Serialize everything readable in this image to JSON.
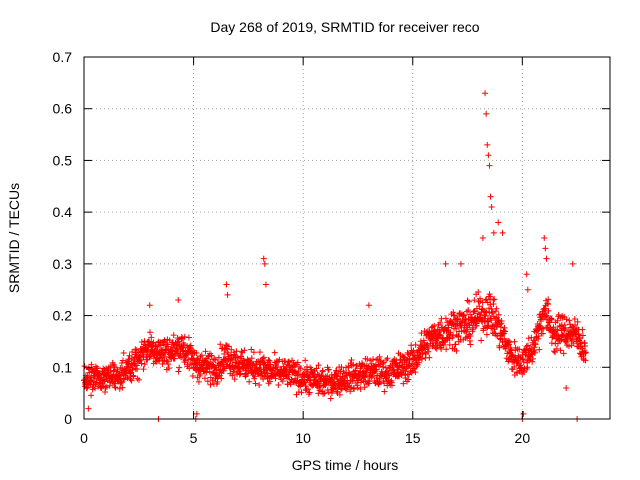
{
  "chart_data": {
    "type": "scatter",
    "title": "Day 268 of 2019, SRMTID for receiver reco",
    "xlabel": "GPS time / hours",
    "ylabel": "SRMTID / TECUs",
    "xlim": [
      0,
      24
    ],
    "ylim": [
      0,
      0.7
    ],
    "xticks": [
      0,
      5,
      10,
      15,
      20
    ],
    "yticks": [
      0,
      0.1,
      0.2,
      0.3,
      0.4,
      0.5,
      0.6,
      0.7
    ],
    "ytick_labels": [
      "0",
      "0.1",
      "0.2",
      "0.3",
      "0.4",
      "0.5",
      "0.6",
      "0.7"
    ],
    "grid": true,
    "marker": "+",
    "color": "#ff0000",
    "trend": [
      [
        0.0,
        0.07
      ],
      [
        0.5,
        0.08
      ],
      [
        1.0,
        0.085
      ],
      [
        1.5,
        0.08
      ],
      [
        2.0,
        0.09
      ],
      [
        2.5,
        0.12
      ],
      [
        3.0,
        0.14
      ],
      [
        3.5,
        0.13
      ],
      [
        4.0,
        0.13
      ],
      [
        4.5,
        0.14
      ],
      [
        5.0,
        0.11
      ],
      [
        5.5,
        0.1
      ],
      [
        6.0,
        0.1
      ],
      [
        6.5,
        0.12
      ],
      [
        7.0,
        0.11
      ],
      [
        7.5,
        0.1
      ],
      [
        8.0,
        0.1
      ],
      [
        8.5,
        0.09
      ],
      [
        9.0,
        0.09
      ],
      [
        9.5,
        0.085
      ],
      [
        10.0,
        0.08
      ],
      [
        10.5,
        0.075
      ],
      [
        11.0,
        0.07
      ],
      [
        11.5,
        0.075
      ],
      [
        12.0,
        0.08
      ],
      [
        12.5,
        0.085
      ],
      [
        13.0,
        0.09
      ],
      [
        13.5,
        0.09
      ],
      [
        14.0,
        0.09
      ],
      [
        14.5,
        0.1
      ],
      [
        15.0,
        0.11
      ],
      [
        15.5,
        0.14
      ],
      [
        16.0,
        0.16
      ],
      [
        16.5,
        0.17
      ],
      [
        17.0,
        0.18
      ],
      [
        17.5,
        0.18
      ],
      [
        18.0,
        0.2
      ],
      [
        18.5,
        0.21
      ],
      [
        19.0,
        0.17
      ],
      [
        19.5,
        0.12
      ],
      [
        20.0,
        0.11
      ],
      [
        20.5,
        0.14
      ],
      [
        21.0,
        0.21
      ],
      [
        21.5,
        0.16
      ],
      [
        22.0,
        0.17
      ],
      [
        22.5,
        0.16
      ],
      [
        22.9,
        0.13
      ]
    ],
    "outliers": [
      [
        0.2,
        0.02
      ],
      [
        3.4,
        0.0
      ],
      [
        5.1,
        0.0
      ],
      [
        5.15,
        0.01
      ],
      [
        6.5,
        0.26
      ],
      [
        6.55,
        0.24
      ],
      [
        8.2,
        0.31
      ],
      [
        8.25,
        0.3
      ],
      [
        8.3,
        0.26
      ],
      [
        13.0,
        0.22
      ],
      [
        18.3,
        0.63
      ],
      [
        18.35,
        0.59
      ],
      [
        18.4,
        0.53
      ],
      [
        18.45,
        0.51
      ],
      [
        18.5,
        0.49
      ],
      [
        18.55,
        0.43
      ],
      [
        18.6,
        0.41
      ],
      [
        18.9,
        0.38
      ],
      [
        18.2,
        0.35
      ],
      [
        18.7,
        0.36
      ],
      [
        19.1,
        0.36
      ],
      [
        20.0,
        0.0
      ],
      [
        20.05,
        0.01
      ],
      [
        20.2,
        0.28
      ],
      [
        20.25,
        0.25
      ],
      [
        21.0,
        0.35
      ],
      [
        21.05,
        0.33
      ],
      [
        21.1,
        0.31
      ],
      [
        22.3,
        0.3
      ],
      [
        22.5,
        0.0
      ],
      [
        22.0,
        0.06
      ],
      [
        4.3,
        0.23
      ],
      [
        3.0,
        0.22
      ],
      [
        16.5,
        0.3
      ],
      [
        17.2,
        0.3
      ]
    ]
  }
}
